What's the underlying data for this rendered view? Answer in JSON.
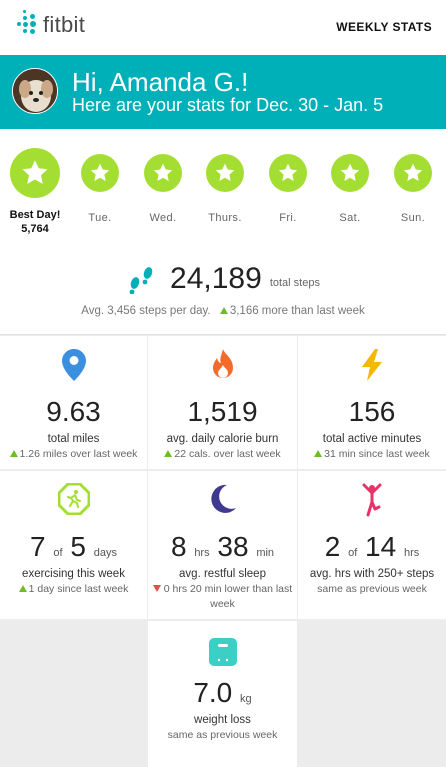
{
  "app": {
    "brand": "fitbit",
    "weekly_stats": "WEEKLY STATS",
    "accent": "#00b0b9",
    "star_color": "#a4de33"
  },
  "banner": {
    "greeting": "Hi, Amanda G.!",
    "subtitle": "Here are your stats for Dec. 30 - Jan. 5"
  },
  "days": {
    "best": {
      "label": "Best Day!",
      "value": "5,764"
    },
    "others": [
      "Tue.",
      "Wed.",
      "Thurs.",
      "Fri.",
      "Sat.",
      "Sun."
    ]
  },
  "steps": {
    "value": "24,189",
    "unit": "total steps",
    "avg": "Avg. 3,456 steps per day.",
    "delta": "3,166 more than last week"
  },
  "tiles": {
    "miles": {
      "value": "9.63",
      "label": "total miles",
      "note": "1.26 miles over last week"
    },
    "calories": {
      "value": "1,519",
      "label": "avg. daily calorie burn",
      "note": "22 cals. over last week"
    },
    "active": {
      "value": "156",
      "label": "total active minutes",
      "note": "31 min since last week"
    },
    "exercise": {
      "value_a": "7",
      "of": "of",
      "value_b": "5",
      "unit": "days",
      "label": "exercising this week",
      "note": "1 day since last week"
    },
    "sleep": {
      "hrs": "8",
      "hrs_unit": "hrs",
      "min": "38",
      "min_unit": "min",
      "label": "avg. restful sleep",
      "note": "0 hrs 20 min lower than last week"
    },
    "hourly": {
      "value_a": "2",
      "of": "of",
      "value_b": "14",
      "unit": "hrs",
      "label": "avg. hrs with 250+ steps",
      "note": "same as previous week"
    },
    "weight": {
      "value": "7.0",
      "unit": "kg",
      "label": "weight loss",
      "note": "same as previous week"
    }
  }
}
